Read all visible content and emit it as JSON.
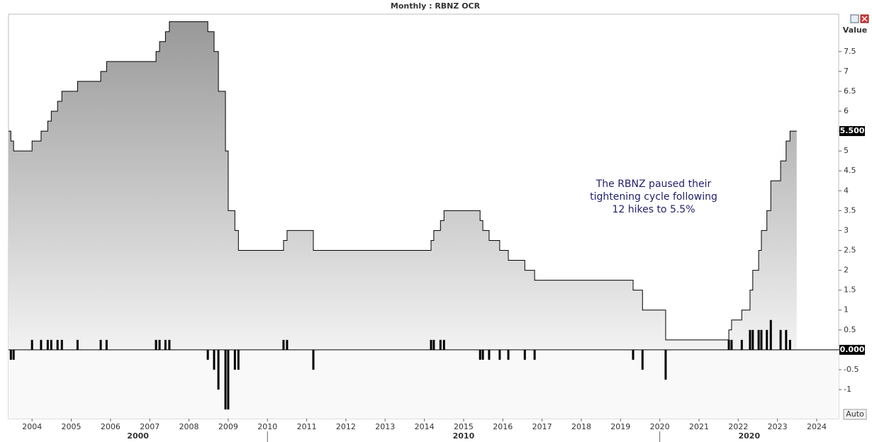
{
  "chart_data": {
    "type": "line",
    "title": "Monthly : RBNZ OCR",
    "y_axis_title": "Value",
    "auto_button": "Auto",
    "annotation": [
      "The RBNZ paused their",
      "tightening cycle following",
      "12 hikes to 5.5%"
    ],
    "last_value": {
      "value": 5.5,
      "label": "5.500"
    },
    "xlim": [
      2003.4,
      2024.56
    ],
    "xticks": [
      2004,
      2005,
      2006,
      2007,
      2008,
      2009,
      2010,
      2011,
      2012,
      2013,
      2014,
      2015,
      2016,
      2017,
      2018,
      2019,
      2020,
      2021,
      2022,
      2023,
      2024
    ],
    "decades": [
      2000,
      2010,
      2020
    ],
    "ylim": [
      -1.73,
      8.44
    ],
    "yticks": [
      -1,
      -0.5,
      {
        "value": 0,
        "label": "0.000"
      },
      0.5,
      1,
      1.5,
      2,
      2.5,
      3,
      3.5,
      4,
      4.5,
      5,
      5.5,
      6,
      6.5,
      7,
      7.5
    ],
    "series": [
      {
        "type": "step",
        "color": "#000000",
        "x": [
          2003.4,
          2003.46,
          2003.53,
          2004.0,
          2004.23,
          2004.4,
          2004.49,
          2004.65,
          2004.76,
          2005.16,
          2005.75,
          2005.9,
          2007.16,
          2007.25,
          2007.4,
          2007.5,
          2008.48,
          2008.64,
          2008.75,
          2008.93,
          2009.0,
          2009.17,
          2009.26,
          2010.41,
          2010.5,
          2011.17,
          2014.17,
          2014.24,
          2014.41,
          2014.5,
          2015.42,
          2015.49,
          2015.65,
          2015.92,
          2016.14,
          2016.56,
          2016.81,
          2019.32,
          2019.56,
          2020.15,
          2021.76,
          2021.83,
          2022.09,
          2022.3,
          2022.37,
          2022.52,
          2022.59,
          2022.73,
          2022.83,
          2023.08,
          2023.22,
          2023.32,
          2023.49
        ],
        "values": [
          5.5,
          5.25,
          5,
          5.25,
          5.5,
          5.75,
          6,
          6.25,
          6.5,
          6.75,
          7,
          7.25,
          7.5,
          7.75,
          8,
          8.25,
          8,
          7.5,
          6.5,
          5,
          3.5,
          3,
          2.5,
          2.75,
          3,
          2.5,
          2.75,
          3,
          3.25,
          3.5,
          3.25,
          3,
          2.75,
          2.5,
          2.25,
          2,
          1.75,
          1.5,
          1,
          0.25,
          0.5,
          0.75,
          1,
          1.5,
          2,
          2.5,
          3,
          3.5,
          4.25,
          4.75,
          5.25,
          5.5,
          5.5
        ]
      },
      {
        "type": "bar",
        "color": "#000000",
        "x": [
          2003.46,
          2003.53,
          2004.0,
          2004.23,
          2004.4,
          2004.49,
          2004.65,
          2004.76,
          2005.16,
          2005.75,
          2005.9,
          2007.16,
          2007.25,
          2007.4,
          2007.5,
          2008.48,
          2008.64,
          2008.75,
          2008.93,
          2009.0,
          2009.17,
          2009.26,
          2010.41,
          2010.5,
          2011.17,
          2014.17,
          2014.24,
          2014.41,
          2014.5,
          2015.42,
          2015.49,
          2015.65,
          2015.92,
          2016.14,
          2016.56,
          2016.81,
          2019.32,
          2019.56,
          2020.15,
          2021.76,
          2021.83,
          2022.09,
          2022.3,
          2022.37,
          2022.52,
          2022.59,
          2022.73,
          2022.83,
          2023.08,
          2023.22,
          2023.32
        ],
        "values": [
          -0.25,
          -0.25,
          0.25,
          0.25,
          0.25,
          0.25,
          0.25,
          0.25,
          0.25,
          0.25,
          0.25,
          0.25,
          0.25,
          0.25,
          0.25,
          -0.25,
          -0.5,
          -1,
          -1.5,
          -1.5,
          -0.5,
          -0.5,
          0.25,
          0.25,
          -0.5,
          0.25,
          0.25,
          0.25,
          0.25,
          -0.25,
          -0.25,
          -0.25,
          -0.25,
          -0.25,
          -0.25,
          -0.25,
          -0.25,
          -0.5,
          -0.75,
          0.25,
          0.25,
          0.25,
          0.5,
          0.5,
          0.5,
          0.5,
          0.5,
          0.75,
          0.5,
          0.5,
          0.25
        ]
      }
    ]
  }
}
